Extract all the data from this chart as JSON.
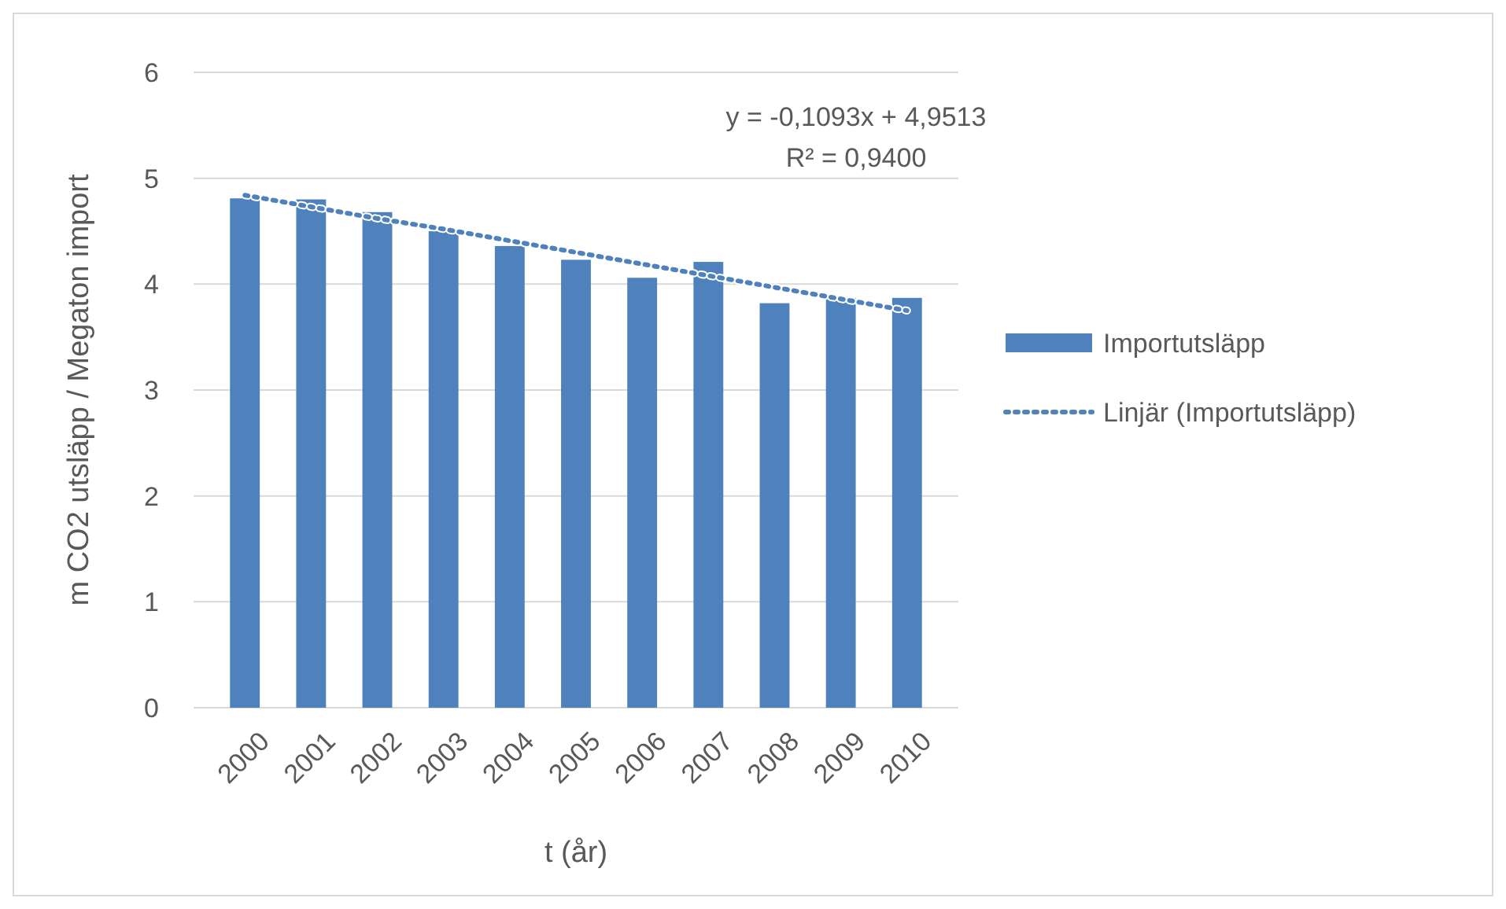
{
  "chart_data": {
    "type": "bar",
    "xlabel": "t (år)",
    "ylabel": "m CO2 utsläpp / Megaton import",
    "categories": [
      "2000",
      "2001",
      "2002",
      "2003",
      "2004",
      "2005",
      "2006",
      "2007",
      "2008",
      "2009",
      "2010"
    ],
    "series": [
      {
        "name": "Importutsläpp",
        "color": "#4f81bd",
        "values": [
          4.81,
          4.8,
          4.68,
          4.5,
          4.36,
          4.23,
          4.06,
          4.21,
          3.82,
          3.87,
          3.87
        ]
      },
      {
        "name": "Linjär (Importutsläpp)",
        "type": "line",
        "color": "#4f81bd",
        "line_style": "dotted",
        "marker": "none",
        "values": [
          4.84,
          4.73,
          4.62,
          4.52,
          4.41,
          4.3,
          4.19,
          4.08,
          3.97,
          3.86,
          3.75
        ]
      }
    ],
    "ylim": [
      0,
      6
    ],
    "yticks": [
      0,
      1,
      2,
      3,
      4,
      5,
      6
    ],
    "grid": "y",
    "legend": "right",
    "annotations": [
      "y = -0,1093x + 4,9513",
      "R² = 0,9400"
    ]
  }
}
